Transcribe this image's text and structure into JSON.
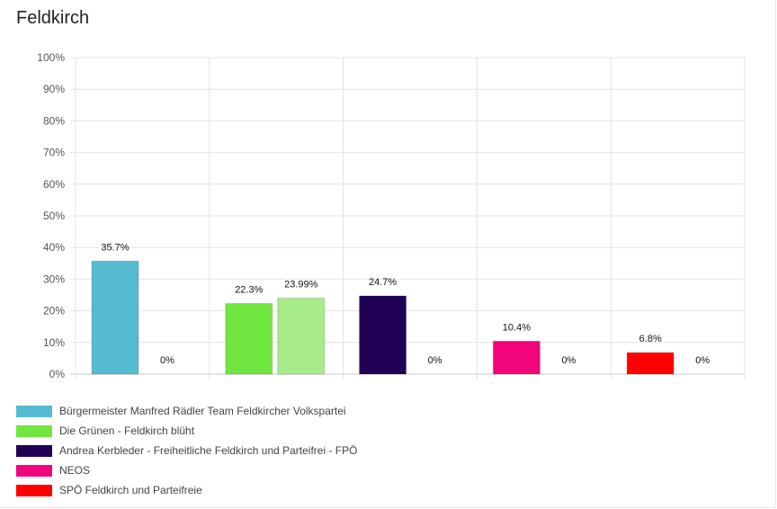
{
  "page": {
    "title": "Feldkirch"
  },
  "chart_data": {
    "type": "bar",
    "title": "Feldkirch",
    "xlabel": "",
    "ylabel": "",
    "ylim": [
      0,
      100
    ],
    "yticks": [
      "0%",
      "10%",
      "20%",
      "30%",
      "40%",
      "50%",
      "60%",
      "70%",
      "80%",
      "90%",
      "100%"
    ],
    "grid": true,
    "legend_position": "bottom",
    "groups": [
      {
        "bars": [
          {
            "value": 35.7,
            "label": "35.7%",
            "color": "#55BBD0"
          },
          {
            "value": 0,
            "label": "0%",
            "color": "#55BBD0"
          }
        ]
      },
      {
        "bars": [
          {
            "value": 22.3,
            "label": "22.3%",
            "color": "#72E640"
          },
          {
            "value": 23.99,
            "label": "23.99%",
            "color": "#A8EB8A"
          }
        ]
      },
      {
        "bars": [
          {
            "value": 24.7,
            "label": "24.7%",
            "color": "#1F0054"
          },
          {
            "value": 0,
            "label": "0%",
            "color": "#1F0054"
          }
        ]
      },
      {
        "bars": [
          {
            "value": 10.4,
            "label": "10.4%",
            "color": "#F0067A"
          },
          {
            "value": 0,
            "label": "0%",
            "color": "#F0067A"
          }
        ]
      },
      {
        "bars": [
          {
            "value": 6.8,
            "label": "6.8%",
            "color": "#FF0000"
          },
          {
            "value": 0,
            "label": "0%",
            "color": "#FF0000"
          }
        ]
      }
    ],
    "legend": [
      {
        "label": "Bürgermeister Manfred Rädler Team Feldkircher Volkspartei",
        "color": "#55BBD0"
      },
      {
        "label": "Die Grünen - Feldkirch blüht",
        "color": "#72E640"
      },
      {
        "label": "Andrea Kerbleder - Freiheitliche Feldkirch und Parteifrei - FPÖ",
        "color": "#1F0054"
      },
      {
        "label": "NEOS",
        "color": "#F0067A"
      },
      {
        "label": "SPÖ Feldkirch und Parteifreie",
        "color": "#FF0000"
      }
    ]
  }
}
